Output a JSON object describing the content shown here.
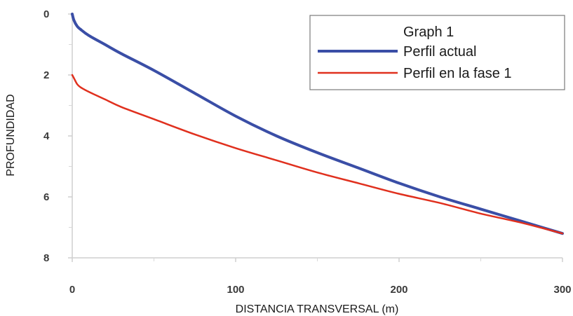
{
  "chart_data": {
    "type": "line",
    "xlabel": "DISTANCIA TRANSVERSAL (m)",
    "ylabel": "PROFUNDIDAD",
    "xlim": [
      0,
      300
    ],
    "ylim": [
      0,
      8
    ],
    "y_inverted": true,
    "x_ticks": [
      0,
      100,
      200,
      300
    ],
    "y_ticks": [
      0,
      2,
      4,
      6,
      8
    ],
    "grid": false,
    "legend": {
      "title": "Graph 1",
      "placement": "top-right"
    },
    "series": [
      {
        "name": "Perfil actual",
        "color": "#3a4ea6",
        "x": [
          0,
          1,
          3,
          5,
          10,
          20,
          30,
          50,
          75,
          100,
          125,
          150,
          175,
          200,
          225,
          250,
          275,
          300
        ],
        "y": [
          0.0,
          0.2,
          0.4,
          0.5,
          0.7,
          1.0,
          1.3,
          1.85,
          2.6,
          3.35,
          4.0,
          4.55,
          5.05,
          5.55,
          6.0,
          6.4,
          6.8,
          7.2
        ]
      },
      {
        "name": "Perfil en la fase 1",
        "color": "#e0301e",
        "x": [
          0,
          1,
          3,
          5,
          10,
          20,
          30,
          50,
          75,
          100,
          125,
          150,
          175,
          200,
          225,
          250,
          275,
          300
        ],
        "y": [
          2.0,
          2.1,
          2.3,
          2.4,
          2.55,
          2.8,
          3.05,
          3.45,
          3.95,
          4.4,
          4.8,
          5.2,
          5.55,
          5.9,
          6.2,
          6.55,
          6.85,
          7.2
        ]
      }
    ]
  }
}
